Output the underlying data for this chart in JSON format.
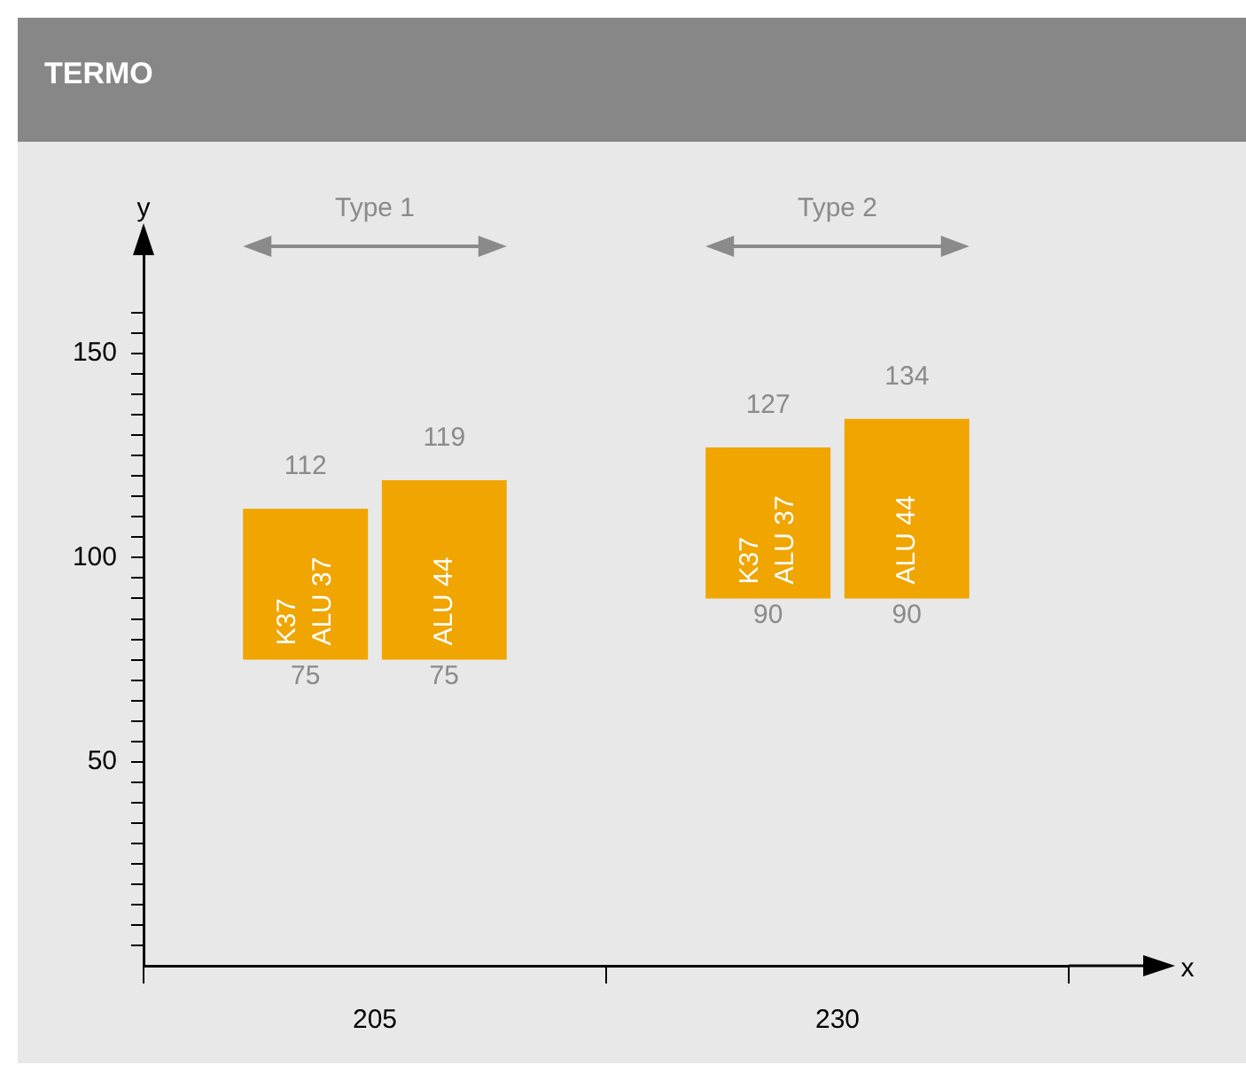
{
  "chart_data": {
    "type": "bar",
    "title": "TERMO",
    "xlabel": "x",
    "ylabel": "y",
    "categories": [
      "205",
      "230"
    ],
    "series": [
      {
        "name": "K37\nALU 37",
        "color": "#f0a500",
        "base": [
          75,
          90
        ],
        "values": [
          37,
          37
        ]
      },
      {
        "name": "ALU 44",
        "color": "#f0a500",
        "base": [
          75,
          90
        ],
        "values": [
          44,
          44
        ]
      }
    ],
    "ylim": [
      0,
      175
    ],
    "yticks": [
      {
        "value": 5,
        "label": null
      },
      {
        "value": 10,
        "label": null
      },
      {
        "value": 15,
        "label": null
      },
      {
        "value": 20,
        "label": null
      },
      {
        "value": 25,
        "label": null
      },
      {
        "value": 30,
        "label": null
      },
      {
        "value": 35,
        "label": null
      },
      {
        "value": 40,
        "label": null
      },
      {
        "value": 45,
        "label": null
      },
      50,
      {
        "value": 55,
        "label": null
      },
      {
        "value": 60,
        "label": null
      },
      {
        "value": 65,
        "label": null
      },
      {
        "value": 70,
        "label": null
      },
      {
        "value": 75,
        "label": null
      },
      {
        "value": 80,
        "label": null
      },
      {
        "value": 85,
        "label": null
      },
      {
        "value": 90,
        "label": null
      },
      {
        "value": 95,
        "label": null
      },
      100,
      {
        "value": 105,
        "label": null
      },
      {
        "value": 110,
        "label": null
      },
      {
        "value": 115,
        "label": null
      },
      {
        "value": 120,
        "label": null
      },
      {
        "value": 125,
        "label": null
      },
      {
        "value": 130,
        "label": null
      },
      {
        "value": 135,
        "label": null
      },
      {
        "value": 140,
        "label": null
      },
      {
        "value": 145,
        "label": null
      },
      150,
      {
        "value": 155,
        "label": null
      },
      {
        "value": 160,
        "label": null
      }
    ],
    "annotations": [
      "Type 1",
      "Type 2",
      {
        "text": "112",
        "x": "205",
        "y": 112
      },
      {
        "text": "75",
        "x": "205",
        "y": 75
      },
      {
        "text": "119",
        "x": "205",
        "y": 119
      },
      {
        "text": "75",
        "x": "205",
        "y": 75
      },
      {
        "text": "127",
        "x": "230",
        "y": 127
      },
      {
        "text": "90",
        "x": "230",
        "y": 90
      },
      {
        "text": "134",
        "x": "230",
        "y": 134
      },
      {
        "text": "90",
        "x": "230",
        "y": 90
      }
    ],
    "grid": false,
    "legend": false
  }
}
